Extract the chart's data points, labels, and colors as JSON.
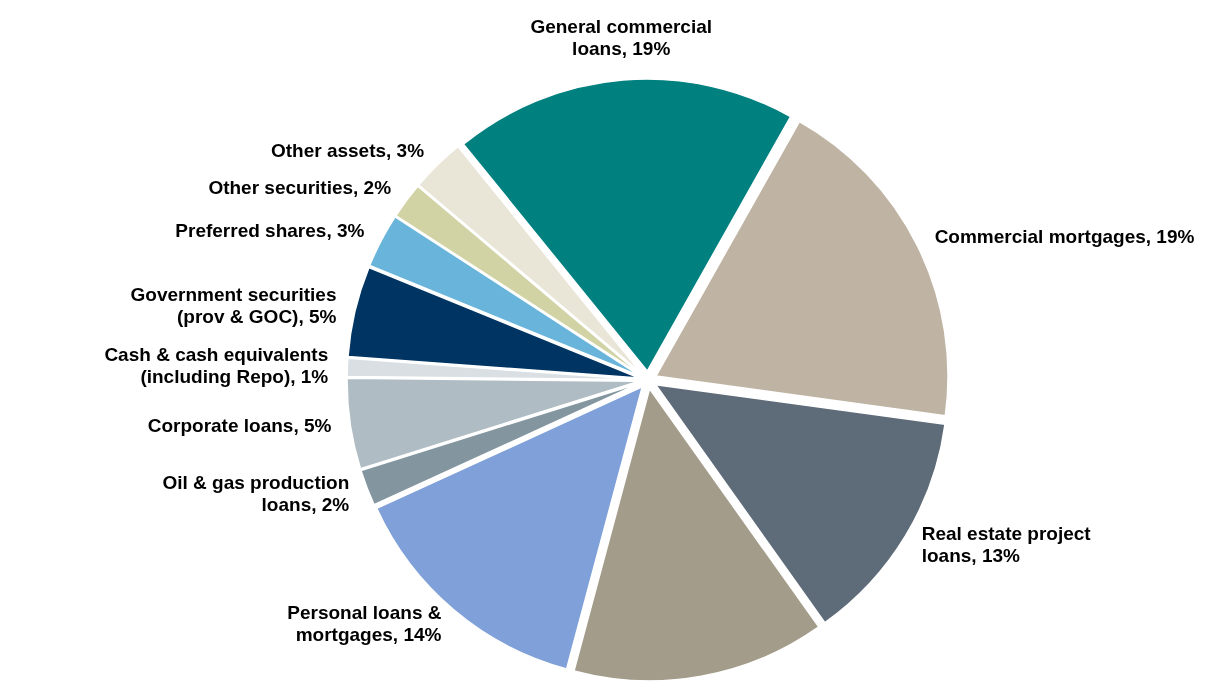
{
  "chart_data": {
    "type": "pie",
    "categories": [
      "General commercial loans",
      "Commercial mortgages",
      "Real estate project loans",
      null,
      "Personal loans & mortgages",
      "Oil & gas production loans",
      "Corporate loans",
      "Cash & cash equivalents (including Repo)",
      "Government securities (prov & GOC)",
      "Preferred shares",
      "Other securities",
      "Other assets"
    ],
    "values": [
      19,
      19,
      13,
      14,
      14,
      2,
      5,
      1,
      5,
      3,
      2,
      3
    ],
    "value_labels": [
      "19%",
      "19%",
      "13%",
      null,
      "14%",
      "2%",
      "5%",
      "1%",
      "5%",
      "3%",
      "2%",
      "3%"
    ],
    "colors": [
      "#00807f",
      "#bfb3a3",
      "#5e6b78",
      "#a39c8a",
      "#7fa0d8",
      "#8396a0",
      "#afbcc3",
      "#d9dfe2",
      "#003462",
      "#69b4da",
      "#d2d3a4",
      "#e9e6d8"
    ]
  }
}
